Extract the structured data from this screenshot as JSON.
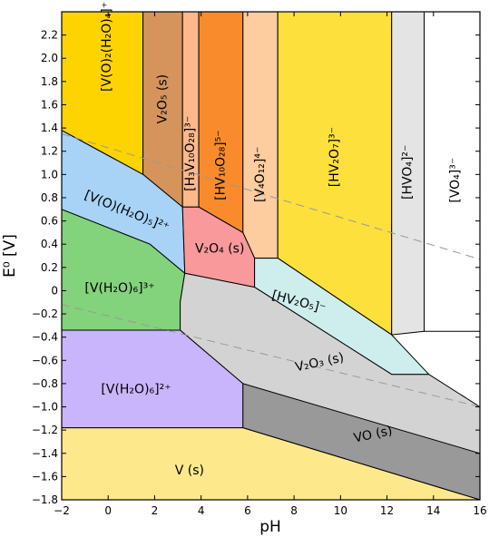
{
  "chart_data": {
    "type": "area",
    "title": "",
    "xlabel": "pH",
    "ylabel": "E⁰ [V]",
    "xlim": [
      -2,
      16
    ],
    "ylim": [
      -1.8,
      2.4
    ],
    "x_ticks": [
      -2,
      0,
      2,
      4,
      6,
      8,
      10,
      12,
      14,
      16
    ],
    "x_tick_labels": [
      "−2",
      "0",
      "2",
      "4",
      "6",
      "8",
      "10",
      "12",
      "14",
      "16"
    ],
    "y_ticks": [
      2.2,
      2.0,
      1.8,
      1.6,
      1.4,
      1.2,
      1.0,
      0.8,
      0.6,
      0.4,
      0.2,
      0,
      -0.2,
      -0.4,
      -0.6,
      -0.8,
      -1.0,
      -1.2,
      -1.4,
      -1.6,
      -1.8
    ],
    "y_tick_labels": [
      "2.2",
      "2.0",
      "1.8",
      "1.6",
      "1.4",
      "1.2",
      "1.0",
      "0.8",
      "0.6",
      "0.4",
      "0.2",
      "0",
      "−0.2",
      "−0.4",
      "−0.6",
      "−0.8",
      "−1.0",
      "−1.2",
      "−1.4",
      "−1.6",
      "−1.8"
    ],
    "grid": false,
    "regions": [
      {
        "id": "vo2h2o4",
        "color": "#fdd400",
        "polygon": [
          [
            -2,
            2.4
          ],
          [
            1.5,
            2.4
          ],
          [
            1.5,
            1.0
          ],
          [
            -2,
            1.38
          ]
        ]
      },
      {
        "id": "v2o5",
        "color": "#d4945c",
        "polygon": [
          [
            1.5,
            2.4
          ],
          [
            3.2,
            2.4
          ],
          [
            3.2,
            0.72
          ],
          [
            1.5,
            1.0
          ]
        ]
      },
      {
        "id": "h2v10o28",
        "color": "#fcb88b",
        "polygon": [
          [
            3.2,
            2.4
          ],
          [
            3.9,
            2.4
          ],
          [
            3.9,
            0.72
          ],
          [
            3.2,
            0.72
          ]
        ]
      },
      {
        "id": "hv10o28",
        "color": "#f98b2c",
        "polygon": [
          [
            3.9,
            2.4
          ],
          [
            5.8,
            2.4
          ],
          [
            5.8,
            0.5
          ],
          [
            3.9,
            0.72
          ]
        ]
      },
      {
        "id": "v4o12",
        "color": "#fdcc9f",
        "polygon": [
          [
            5.8,
            2.4
          ],
          [
            7.3,
            2.4
          ],
          [
            7.3,
            0.28
          ],
          [
            6.3,
            0.28
          ],
          [
            5.8,
            0.5
          ]
        ]
      },
      {
        "id": "hv2o7",
        "color": "#fde03c",
        "polygon": [
          [
            7.3,
            2.4
          ],
          [
            12.2,
            2.4
          ],
          [
            12.2,
            -0.38
          ],
          [
            7.3,
            0.28
          ]
        ]
      },
      {
        "id": "hvo4",
        "color": "#e4e4e4",
        "polygon": [
          [
            12.2,
            2.4
          ],
          [
            13.6,
            2.4
          ],
          [
            13.6,
            -0.35
          ],
          [
            12.2,
            -0.38
          ]
        ]
      },
      {
        "id": "vo4",
        "color": "#ffffff",
        "polygon": [
          [
            13.6,
            2.4
          ],
          [
            16,
            2.4
          ],
          [
            16,
            -0.35
          ],
          [
            13.6,
            -0.35
          ]
        ]
      },
      {
        "id": "voh2o5",
        "color": "#a8d3f7",
        "polygon": [
          [
            -2,
            1.38
          ],
          [
            1.5,
            1.0
          ],
          [
            3.2,
            0.72
          ],
          [
            3.3,
            0.15
          ],
          [
            1.8,
            0.4
          ],
          [
            -2,
            0.7
          ]
        ]
      },
      {
        "id": "v2o4",
        "color": "#f9999b",
        "polygon": [
          [
            3.2,
            0.72
          ],
          [
            3.9,
            0.72
          ],
          [
            5.8,
            0.5
          ],
          [
            6.3,
            0.28
          ],
          [
            6.3,
            0.03
          ],
          [
            3.3,
            0.15
          ]
        ]
      },
      {
        "id": "vh2o63",
        "color": "#83d27c",
        "polygon": [
          [
            -2,
            0.7
          ],
          [
            1.8,
            0.4
          ],
          [
            3.3,
            0.15
          ],
          [
            3.1,
            -0.1
          ],
          [
            3.1,
            -0.34
          ],
          [
            -2,
            -0.34
          ]
        ]
      },
      {
        "id": "hv2o5",
        "color": "#ceeded",
        "polygon": [
          [
            6.3,
            0.28
          ],
          [
            7.3,
            0.28
          ],
          [
            12.2,
            -0.38
          ],
          [
            13.8,
            -0.72
          ],
          [
            12.2,
            -0.72
          ],
          [
            6.3,
            0.03
          ]
        ]
      },
      {
        "id": "v2o3",
        "color": "#d3d3d3",
        "polygon": [
          [
            3.3,
            0.15
          ],
          [
            6.3,
            0.03
          ],
          [
            12.2,
            -0.72
          ],
          [
            13.8,
            -0.72
          ],
          [
            16,
            -1.0
          ],
          [
            16,
            -1.4
          ],
          [
            5.8,
            -1.18
          ],
          [
            5.8,
            -0.8
          ],
          [
            3.1,
            -0.34
          ],
          [
            3.1,
            -0.1
          ]
        ]
      },
      {
        "id": "vh2o62",
        "color": "#c9b5fb",
        "polygon": [
          [
            -2,
            -0.34
          ],
          [
            3.1,
            -0.34
          ],
          [
            5.8,
            -0.8
          ],
          [
            5.8,
            -1.18
          ],
          [
            -2,
            -1.18
          ]
        ]
      },
      {
        "id": "vo",
        "color": "#999999",
        "polygon": [
          [
            5.8,
            -0.8
          ],
          [
            16,
            -1.4
          ],
          [
            16,
            -1.8
          ],
          [
            5.8,
            -1.18
          ]
        ]
      },
      {
        "id": "vs",
        "color": "#fde98b",
        "polygon": [
          [
            -2,
            -1.18
          ],
          [
            5.8,
            -1.18
          ],
          [
            16,
            -1.8
          ],
          [
            -2,
            -1.8
          ]
        ]
      }
    ],
    "water_lines": [
      {
        "from": [
          -2,
          1.35
        ],
        "to": [
          16,
          0.27
        ]
      },
      {
        "from": [
          -2,
          -0.12
        ],
        "to": [
          16,
          -1.0
        ]
      }
    ],
    "labels": [
      {
        "text": "[V(O)₂(H₂O)₄]⁺",
        "x": -0.05,
        "y": 2.1,
        "rotate": -90,
        "color": "#000000"
      },
      {
        "text": "V₂O₅ (s)",
        "x": 2.35,
        "y": 1.65,
        "rotate": -90,
        "color": "#000000"
      },
      {
        "text": "[H₃V₁₀O₂₈]³⁻",
        "x": 3.55,
        "y": 1.18,
        "rotate": -90,
        "color": "#000000"
      },
      {
        "text": "[HV₁₀O₂₈]⁵⁻",
        "x": 4.85,
        "y": 1.08,
        "rotate": -90,
        "color": "#000000"
      },
      {
        "text": "[V₄O₁₂]⁴⁻",
        "x": 6.55,
        "y": 1.0,
        "rotate": -90,
        "color": "#000000"
      },
      {
        "text": "[HV₂O₇]³⁻",
        "x": 9.75,
        "y": 1.15,
        "rotate": -90,
        "color": "#000000"
      },
      {
        "text": "[HVO₄]²⁻",
        "x": 12.9,
        "y": 1.02,
        "rotate": -90,
        "color": "#000000"
      },
      {
        "text": "[VO₄]³⁻",
        "x": 14.95,
        "y": 0.95,
        "rotate": -90,
        "color": "#000000"
      },
      {
        "text": "[V(O)(H₂O)₅]²⁺",
        "x": 0.8,
        "y": 0.68,
        "rotate": 22,
        "color": "#1a2faa"
      },
      {
        "text": "V₂O₄ (s)",
        "x": 4.8,
        "y": 0.36,
        "rotate": 0,
        "color": "#cc1111"
      },
      {
        "text": "[V(H₂O)₆]³⁺",
        "x": 0.5,
        "y": 0.02,
        "rotate": 0,
        "color": "#22aa22"
      },
      {
        "text": "[HV₂O₅]⁻",
        "x": 8.2,
        "y": -0.1,
        "rotate": 15,
        "color": "#000000"
      },
      {
        "text": "V₂O₃ (s)",
        "x": 9.1,
        "y": -0.62,
        "rotate": -12,
        "color": "#000000"
      },
      {
        "text": "[V(H₂O)₆]²⁺",
        "x": 1.2,
        "y": -0.85,
        "rotate": 0,
        "color": "#000000"
      },
      {
        "text": "VO (s)",
        "x": 11.4,
        "y": -1.24,
        "rotate": -12,
        "color": "#000000"
      },
      {
        "text": "V (s)",
        "x": 3.5,
        "y": -1.55,
        "rotate": 0,
        "color": "#000000"
      }
    ]
  }
}
